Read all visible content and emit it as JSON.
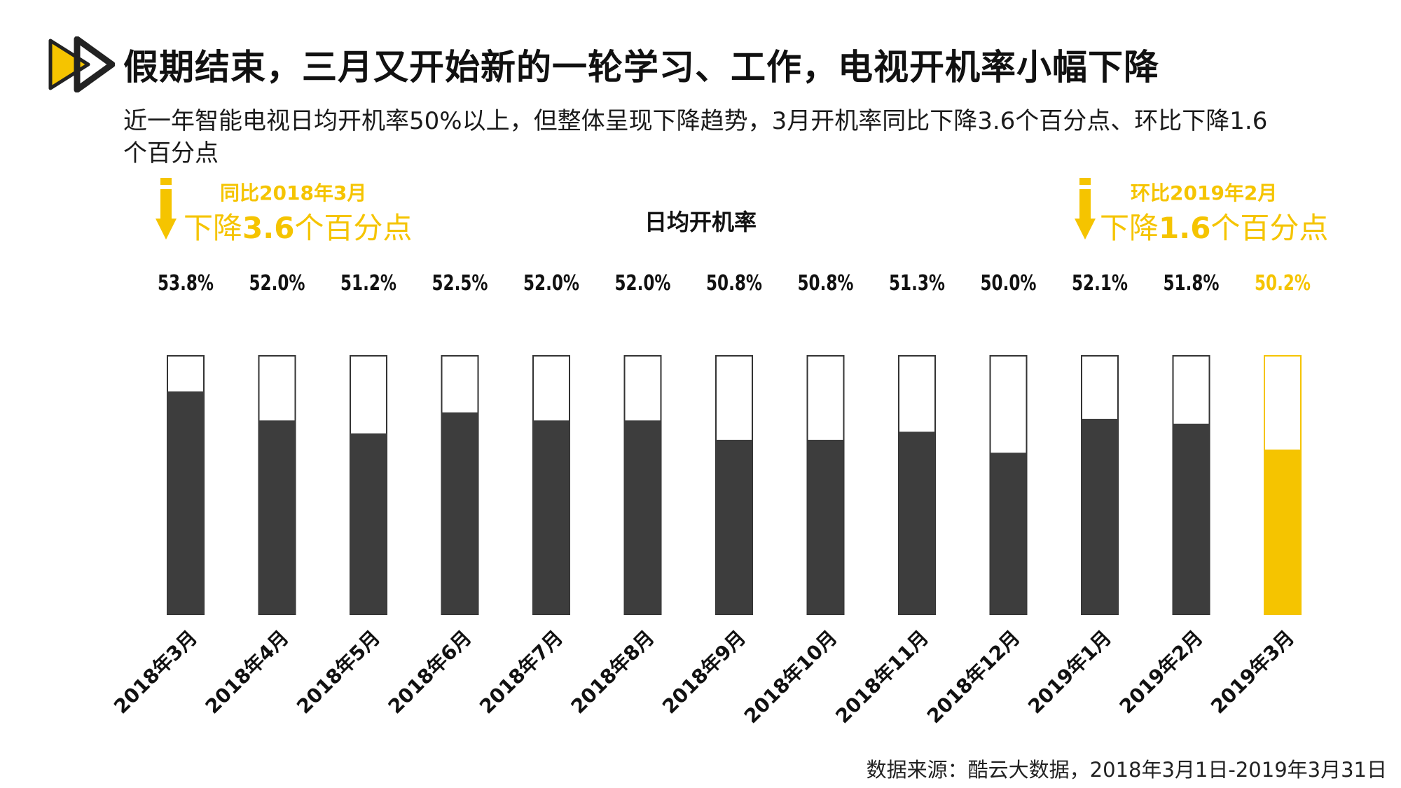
{
  "header": {
    "title": "假期结束，三月又开始新的一轮学习、工作，电视开机率小幅下降",
    "subtitle": "近一年智能电视日均开机率50%以上，但整体呈现下降趋势，3月开机率同比下降3.6个百分点、环比下降1.6个百分点"
  },
  "callouts": {
    "left": {
      "small": "同比2018年3月",
      "big_prefix": "下降",
      "big_value": "3.6",
      "big_suffix": "个百分点"
    },
    "right": {
      "small": "环比2019年2月",
      "big_prefix": "下降",
      "big_value": "1.6",
      "big_suffix": "个百分点"
    }
  },
  "colors": {
    "accent": "#f5c400",
    "bar": "#3d3d3d",
    "outline": "#333333"
  },
  "chart_data": {
    "type": "bar",
    "title": "日均开机率",
    "categories": [
      "2018年3月",
      "2018年4月",
      "2018年5月",
      "2018年6月",
      "2018年7月",
      "2018年8月",
      "2018年9月",
      "2018年10月",
      "2018年11月",
      "2018年12月",
      "2019年1月",
      "2019年2月",
      "2019年3月"
    ],
    "values": [
      53.8,
      52.0,
      51.2,
      52.5,
      52.0,
      52.0,
      50.8,
      50.8,
      51.3,
      50.0,
      52.1,
      51.8,
      50.2
    ],
    "labels": [
      "53.8%",
      "52.0%",
      "51.2%",
      "52.5%",
      "52.0%",
      "52.0%",
      "50.8%",
      "50.8%",
      "51.3%",
      "50.0%",
      "52.1%",
      "51.8%",
      "50.2%"
    ],
    "highlight_index": 12,
    "ylim": [
      40,
      56
    ],
    "xlabel": "",
    "ylabel": ""
  },
  "footer": {
    "source": "数据来源：酷云大数据，2018年3月1日-2019年3月31日"
  }
}
